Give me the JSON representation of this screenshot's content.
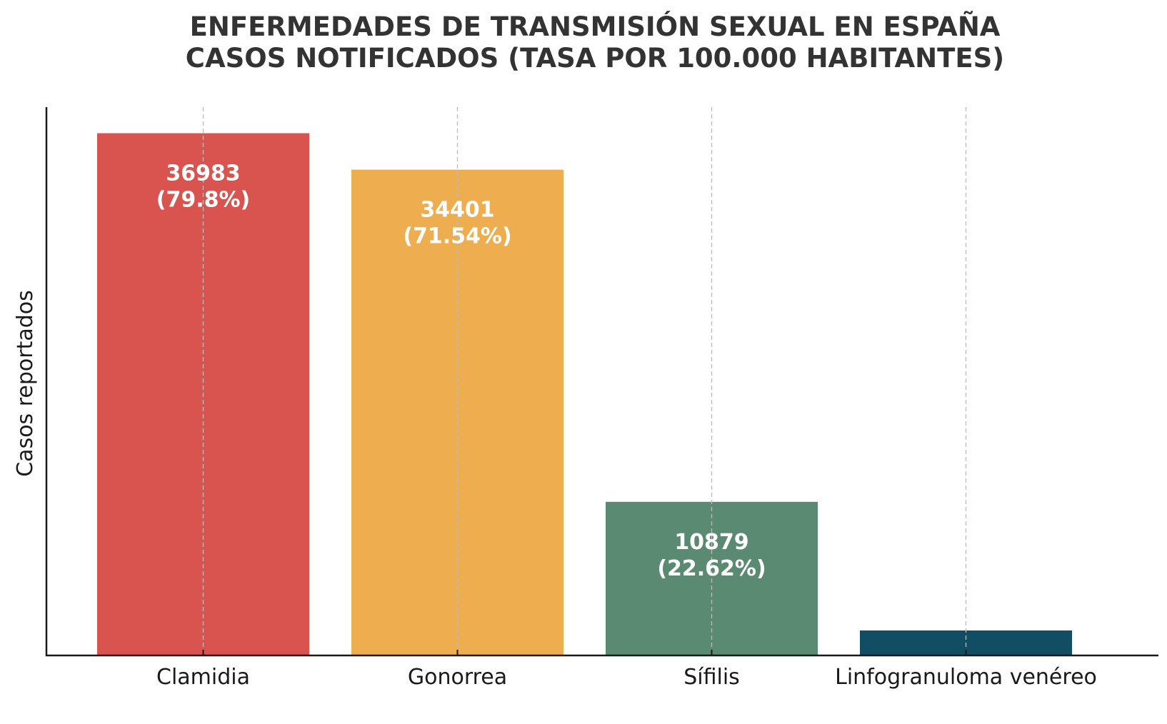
{
  "chart_data": {
    "type": "bar",
    "title": [
      "ENFERMEDADES DE TRANSMISIÓN SEXUAL EN ESPAÑA",
      "CASOS NOTIFICADOS (TASA POR 100.000 HABITANTES)"
    ],
    "xlabel": "",
    "ylabel": "Casos reportados",
    "categories": [
      "Clamidia",
      "Gonorrea",
      "Sífilis",
      "Linfogranuloma venéreo"
    ],
    "values": [
      36983,
      34401,
      10879,
      1770
    ],
    "data_labels": [
      [
        "36983",
        "(79.8%)"
      ],
      [
        "34401",
        "(71.54%)"
      ],
      [
        "10879",
        "(22.62%)"
      ],
      null
    ],
    "colors": [
      "#D9534F",
      "#EEAD4E",
      "#5A8A72",
      "#114D63"
    ],
    "ylim": [
      0,
      38832
    ],
    "y_ticks_shown": false,
    "grid": "vertical dashed at categories"
  }
}
